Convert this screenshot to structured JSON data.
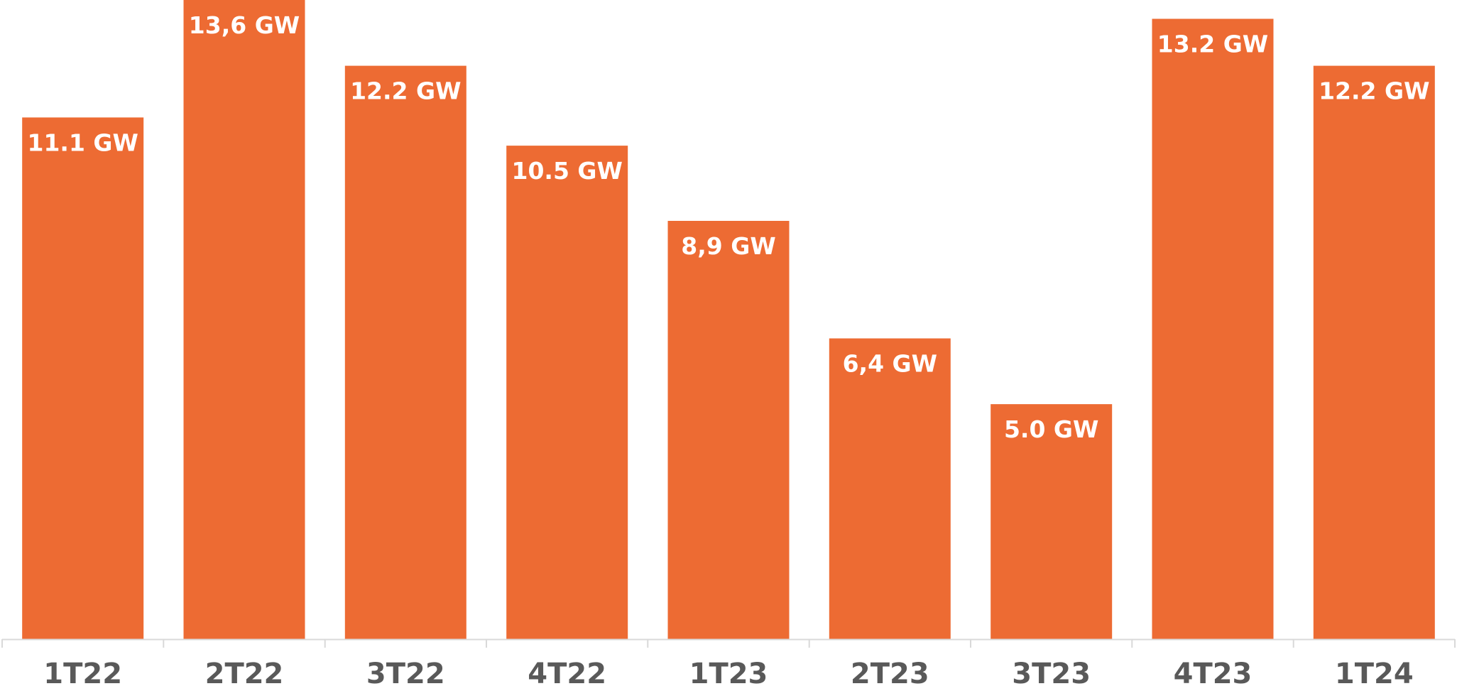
{
  "chart_data": {
    "type": "bar",
    "title": "",
    "xlabel": "",
    "ylabel": "",
    "categories": [
      "1T22",
      "2T22",
      "3T22",
      "4T22",
      "1T23",
      "2T23",
      "3T23",
      "4T23",
      "1T24"
    ],
    "values": [
      11.1,
      13.6,
      12.2,
      10.5,
      8.9,
      6.4,
      5.0,
      13.2,
      12.2
    ],
    "data_labels": [
      "11.1 GW",
      "13,6 GW",
      "12.2 GW",
      "10.5 GW",
      "8,9 GW",
      "6,4 GW",
      "5.0 GW",
      "13.2 GW",
      "12.2 GW"
    ],
    "ylim": [
      0,
      13.6
    ],
    "grid": false,
    "legend": "none",
    "y_axis_visible": false
  },
  "colors": {
    "bar": "#ED6B33",
    "bar_label": "#FFFFFF",
    "tick_label": "#595959",
    "axis_line": "#D9D9D9"
  }
}
